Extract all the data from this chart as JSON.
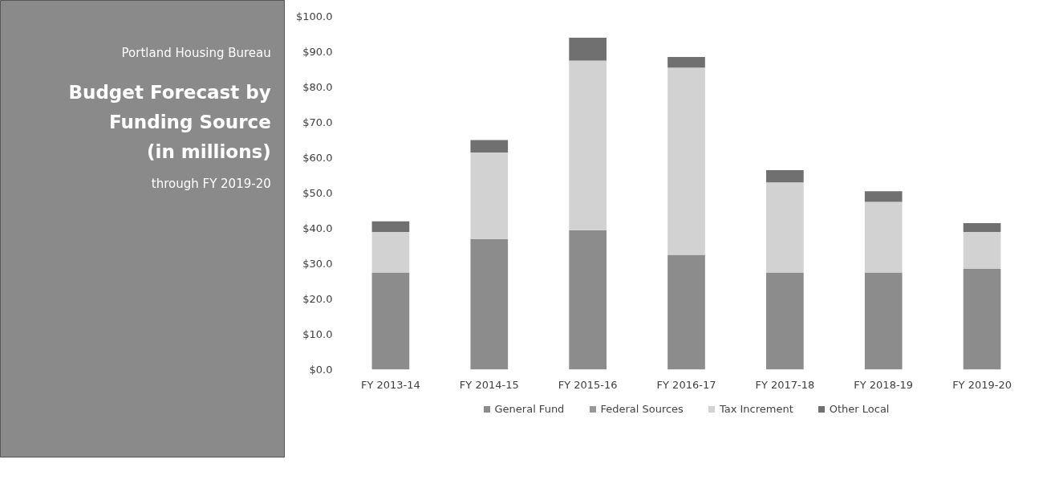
{
  "chart_data": {
    "type": "bar",
    "stacked": true,
    "subtitle": "Portland Housing Bureau",
    "title": "Budget Forecast by Funding Source (in millions)",
    "annotations": [
      "through FY 2019-20"
    ],
    "categories": [
      "FY 2013-14",
      "FY 2014-15",
      "FY 2015-16",
      "FY 2016-17",
      "FY 2017-18",
      "FY 2018-19",
      "FY 2019-20"
    ],
    "series": [
      {
        "name": "General Fund",
        "color": "#8c8c8c",
        "values": [
          27.5,
          37,
          39.5,
          32.5,
          27.5,
          27.5,
          28.5
        ]
      },
      {
        "name": "Federal Sources",
        "color": "#999999",
        "values": [
          null,
          null,
          null,
          null,
          null,
          null,
          null
        ]
      },
      {
        "name": "Tax Increment",
        "color": "#d2d2d2",
        "values": [
          11.5,
          24.5,
          48,
          53,
          25.5,
          20,
          10.5
        ]
      },
      {
        "name": "Other Local",
        "color": "#707070",
        "values": [
          3,
          3.5,
          6.5,
          3,
          3.5,
          3,
          2.5
        ]
      }
    ],
    "ylim": [
      0,
      100
    ],
    "yticks": [
      {
        "value": 0,
        "label": "$0.0"
      },
      {
        "value": 10,
        "label": "$10.0"
      },
      {
        "value": 20,
        "label": "$20.0"
      },
      {
        "value": 30,
        "label": "$30.0"
      },
      {
        "value": 40,
        "label": "$40.0"
      },
      {
        "value": 50,
        "label": "$50.0"
      },
      {
        "value": 60,
        "label": "$60.0"
      },
      {
        "value": 70,
        "label": "$70.0"
      },
      {
        "value": 80,
        "label": "$80.0"
      },
      {
        "value": 90,
        "label": "$90.0"
      },
      {
        "value": 100,
        "label": "$100.0"
      }
    ],
    "grid": false,
    "legend": "bottom"
  }
}
